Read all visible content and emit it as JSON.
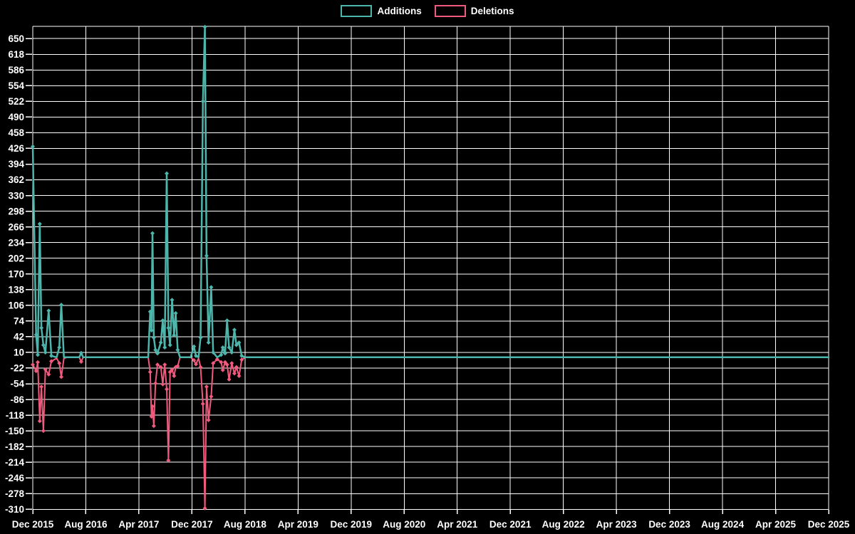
{
  "legend": {
    "items": [
      {
        "label": "Additions",
        "color": "#4db6ac"
      },
      {
        "label": "Deletions",
        "color": "#ef5a7d"
      }
    ]
  },
  "colors": {
    "background": "#000000",
    "grid": "#ffffff",
    "text": "#ffffff",
    "additions": "#4db6ac",
    "deletions": "#ef5a7d"
  },
  "chart_data": {
    "type": "line",
    "title": "",
    "xlabel": "",
    "ylabel": "",
    "legend_position": "top-center",
    "grid": true,
    "x_axis": {
      "tick_labels": [
        "Dec 2015",
        "Aug 2016",
        "Apr 2017",
        "Dec 2017",
        "Aug 2018",
        "Apr 2019",
        "Dec 2019",
        "Aug 2020",
        "Apr 2021",
        "Dec 2021",
        "Aug 2022",
        "Apr 2023",
        "Dec 2023",
        "Aug 2024",
        "Apr 2025",
        "Dec 2025"
      ],
      "months_between_gridlines": 8,
      "month_domain": [
        0,
        120
      ]
    },
    "y_axis": {
      "tick_labels": [
        650,
        618,
        586,
        554,
        522,
        490,
        458,
        426,
        394,
        362,
        330,
        298,
        266,
        234,
        202,
        170,
        138,
        106,
        74,
        42,
        10,
        -22,
        -54,
        -86,
        -118,
        -150,
        -182,
        -214,
        -246,
        -278,
        -310
      ],
      "tick_step": 32,
      "domain": [
        -311,
        675
      ]
    },
    "series": [
      {
        "name": "Additions",
        "color": "#4db6ac",
        "column": 1
      },
      {
        "name": "Deletions",
        "color": "#ef5a7d",
        "column": 2
      }
    ],
    "points": {
      "columns": [
        "months_since_dec_2015",
        "additions",
        "deletions"
      ],
      "rows": [
        [
          0,
          430,
          -15
        ],
        [
          0.5,
          46,
          -28
        ],
        [
          0.75,
          5,
          -10
        ],
        [
          1.05,
          272,
          -130
        ],
        [
          1.3,
          60,
          -60
        ],
        [
          1.6,
          25,
          -150
        ],
        [
          1.9,
          10,
          -25
        ],
        [
          2.4,
          95,
          -35
        ],
        [
          2.8,
          3,
          -8
        ],
        [
          3.6,
          0,
          -2
        ],
        [
          4.0,
          20,
          -12
        ],
        [
          4.3,
          107,
          -40
        ],
        [
          4.7,
          0,
          -2
        ],
        [
          5.2,
          0,
          0
        ],
        [
          7.0,
          0,
          0
        ],
        [
          7.3,
          9,
          -9
        ],
        [
          7.6,
          0,
          0
        ],
        [
          17.4,
          0,
          0
        ],
        [
          17.7,
          93,
          -30
        ],
        [
          17.9,
          55,
          -121
        ],
        [
          18.05,
          253,
          -100
        ],
        [
          18.25,
          40,
          -140
        ],
        [
          18.5,
          15,
          -53
        ],
        [
          18.8,
          8,
          -15
        ],
        [
          19.3,
          30,
          -20
        ],
        [
          19.6,
          75,
          -55
        ],
        [
          19.9,
          20,
          -15
        ],
        [
          20.2,
          375,
          -65
        ],
        [
          20.45,
          60,
          -210
        ],
        [
          20.7,
          25,
          -30
        ],
        [
          21.0,
          117,
          -25
        ],
        [
          21.3,
          45,
          -38
        ],
        [
          21.55,
          90,
          -20
        ],
        [
          21.85,
          15,
          -18
        ],
        [
          22.2,
          0,
          0
        ],
        [
          23.8,
          0,
          0
        ],
        [
          24.3,
          22,
          -6
        ],
        [
          24.6,
          3,
          -14
        ],
        [
          25.0,
          0,
          -2
        ],
        [
          25.3,
          40,
          -20
        ],
        [
          25.65,
          522,
          -95
        ],
        [
          25.95,
          674,
          -308
        ],
        [
          26.2,
          207,
          -60
        ],
        [
          26.5,
          30,
          -128
        ],
        [
          26.9,
          143,
          -80
        ],
        [
          27.2,
          10,
          -12
        ],
        [
          27.8,
          0,
          -4
        ],
        [
          28.4,
          5,
          -10
        ],
        [
          28.65,
          20,
          -26
        ],
        [
          29.0,
          8,
          -10
        ],
        [
          29.3,
          75,
          -15
        ],
        [
          29.6,
          20,
          -45
        ],
        [
          30.0,
          10,
          -12
        ],
        [
          30.4,
          56,
          -33
        ],
        [
          30.7,
          25,
          -20
        ],
        [
          31.1,
          30,
          -38
        ],
        [
          31.5,
          3,
          -5
        ],
        [
          32.0,
          0,
          0
        ],
        [
          120,
          0,
          0
        ]
      ]
    }
  }
}
